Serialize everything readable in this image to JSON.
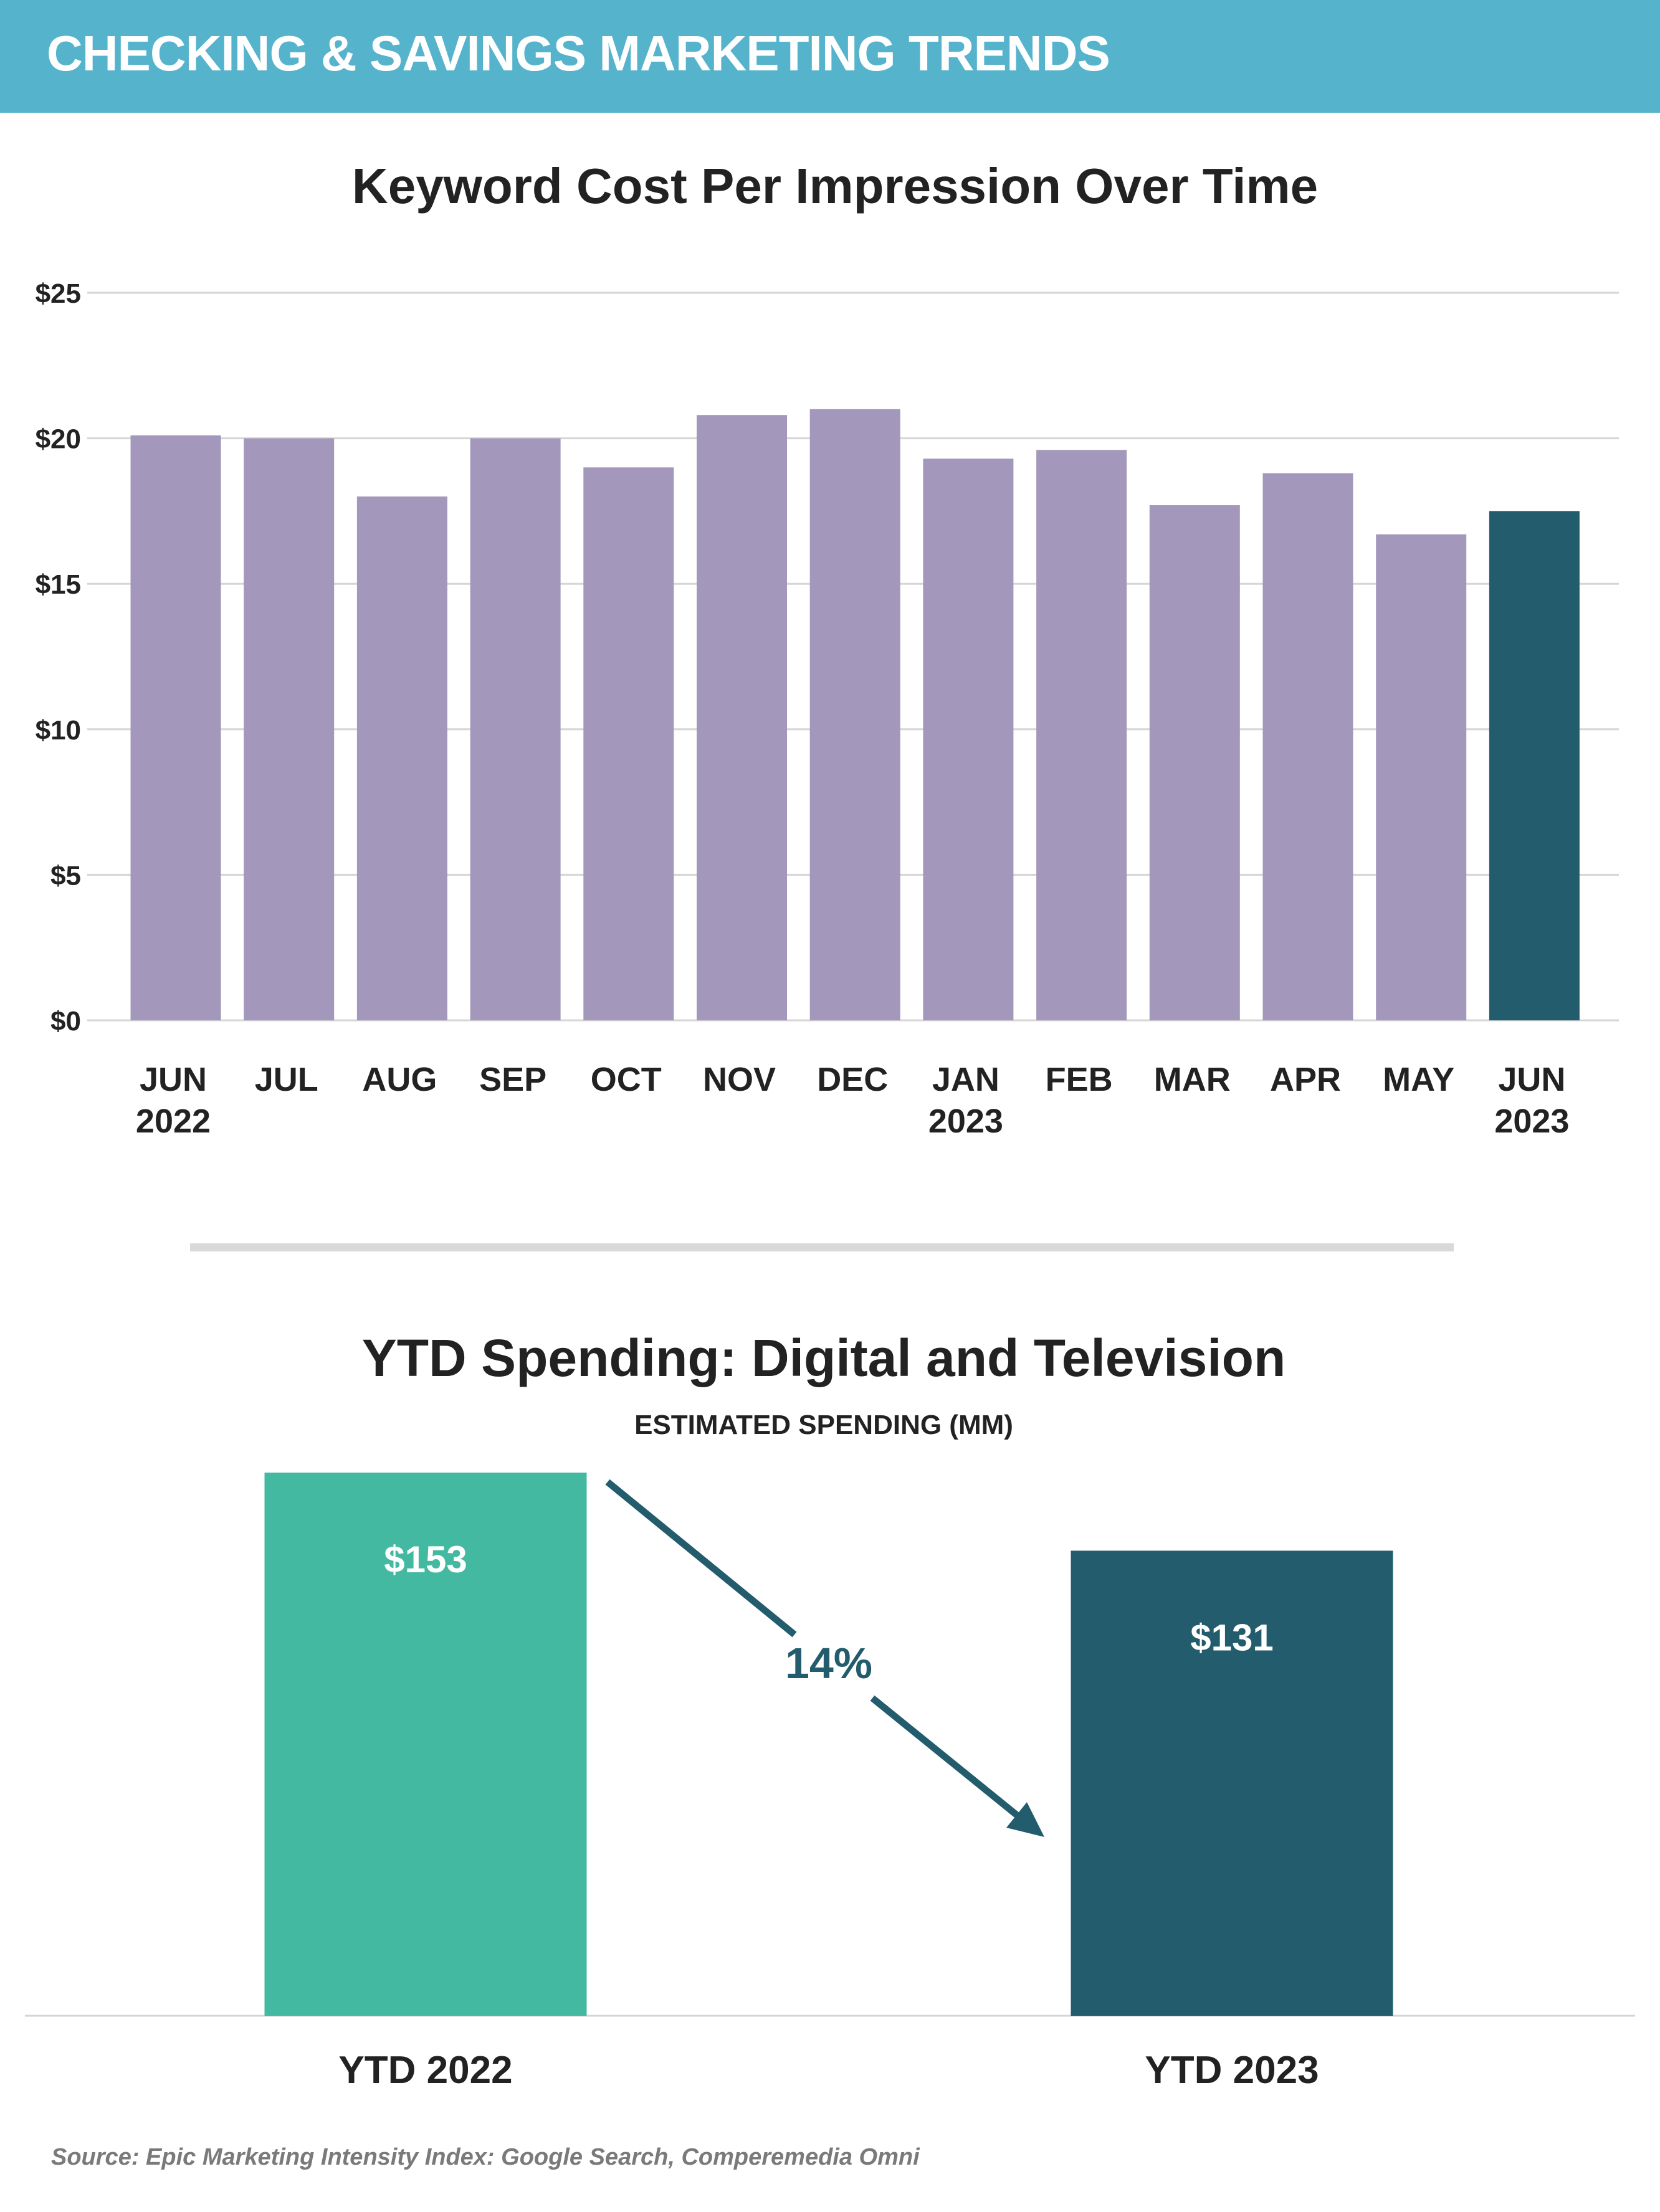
{
  "header": {
    "title": "CHECKING & SAVINGS MARKETING TRENDS"
  },
  "colors": {
    "header_bg": "#56b3cc",
    "bar_default": "#a398bb",
    "bar_highlight": "#235c6c",
    "bar_2022": "#44b9a1",
    "bar_2023": "#235c6c",
    "arrow": "#235c6c"
  },
  "chart_data": [
    {
      "type": "bar",
      "title": "Keyword Cost Per Impression Over Time",
      "xlabel": "",
      "ylabel": "",
      "categories": [
        [
          "JUN",
          "2022"
        ],
        [
          "JUL"
        ],
        [
          "AUG"
        ],
        [
          "SEP"
        ],
        [
          "OCT"
        ],
        [
          "NOV"
        ],
        [
          "DEC"
        ],
        [
          "JAN",
          "2023"
        ],
        [
          "FEB"
        ],
        [
          "MAR"
        ],
        [
          "APR"
        ],
        [
          "MAY"
        ],
        [
          "JUN",
          "2023"
        ]
      ],
      "values": [
        20.1,
        20.0,
        18.0,
        20.0,
        19.0,
        20.8,
        21.0,
        19.3,
        19.6,
        17.7,
        18.8,
        16.7,
        17.5
      ],
      "highlight_index": 12,
      "ylim": [
        0,
        25
      ],
      "yticks": [
        0,
        5,
        10,
        15,
        20,
        25
      ],
      "ytick_labels": [
        "$0",
        "$5",
        "$10",
        "$15",
        "$20",
        "$25"
      ],
      "grid": true,
      "legend": "none"
    },
    {
      "type": "bar",
      "title": "YTD Spending: Digital and Television",
      "subtitle": "ESTIMATED SPENDING (MM)",
      "categories": [
        "YTD 2022",
        "YTD 2023"
      ],
      "values": [
        153,
        131
      ],
      "data_labels": [
        "$153",
        "$131"
      ],
      "change_label": "14%",
      "grid": false,
      "legend": "none"
    }
  ],
  "source": "Source: Epic Marketing Intensity Index: Google Search, Comperemedia Omni"
}
